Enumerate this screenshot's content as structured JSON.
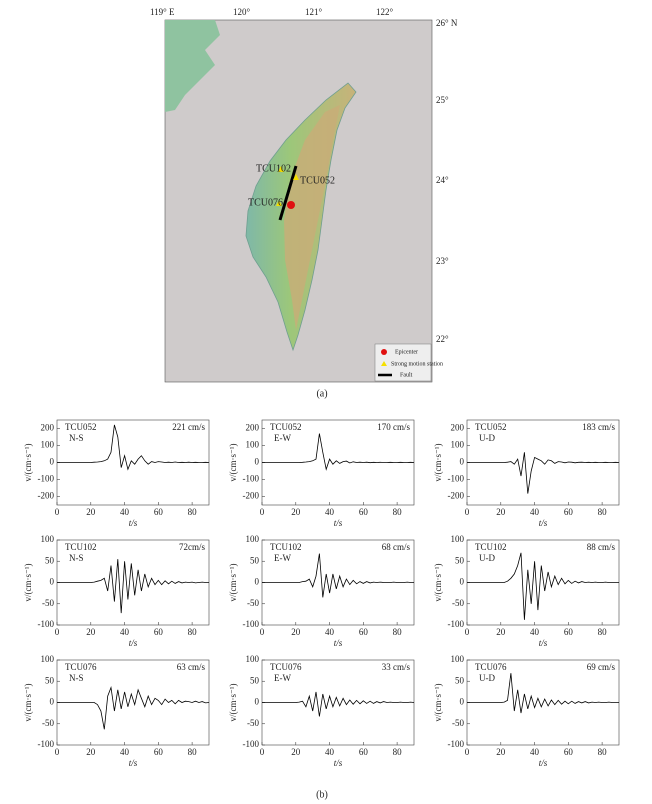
{
  "map": {
    "lon_labels": [
      "119° E",
      "120°",
      "121°",
      "122°"
    ],
    "lat_labels": [
      "26° N",
      "25°",
      "24°",
      "23°",
      "22°"
    ],
    "stations": [
      "TCU102",
      "TCU052",
      "TCU076"
    ],
    "legend": [
      "Epicenter",
      "Strong motion station",
      "Fault"
    ],
    "caption": "(a)"
  },
  "caption_b": "(b)",
  "chart_data": [
    {
      "type": "line",
      "title": "TCU052",
      "subtitle": "N-S",
      "annotation": "221 cm/s",
      "ylabel": "v/(cm·s⁻¹)",
      "xlabel": "t/s",
      "color": "#000000",
      "xlim": [
        0,
        90
      ],
      "xticks": [
        0,
        20,
        40,
        60,
        80
      ],
      "ylim": [
        -250,
        250
      ],
      "yticks": [
        -200,
        -100,
        0,
        100,
        200
      ],
      "x": [
        0,
        2,
        4,
        6,
        8,
        10,
        12,
        14,
        16,
        18,
        20,
        22,
        24,
        26,
        28,
        30,
        32,
        34,
        36,
        38,
        40,
        42,
        44,
        46,
        48,
        50,
        52,
        54,
        56,
        58,
        60,
        62,
        64,
        66,
        68,
        70,
        72,
        74,
        76,
        78,
        80,
        82,
        84,
        86,
        88,
        90
      ],
      "values": [
        0,
        0,
        0,
        0,
        0,
        0,
        0,
        0,
        0,
        0,
        0,
        2,
        3,
        5,
        10,
        20,
        60,
        221,
        150,
        -30,
        40,
        -40,
        10,
        -10,
        20,
        40,
        10,
        -10,
        5,
        0,
        5,
        3,
        0,
        2,
        0,
        3,
        0,
        1,
        0,
        2,
        0,
        1,
        0,
        0,
        1,
        0
      ]
    },
    {
      "type": "line",
      "title": "TCU052",
      "subtitle": "E-W",
      "annotation": "170 cm/s",
      "ylabel": "v/(cm·s⁻¹)",
      "xlabel": "t/s",
      "color": "#000000",
      "xlim": [
        0,
        90
      ],
      "xticks": [
        0,
        20,
        40,
        60,
        80
      ],
      "ylim": [
        -250,
        250
      ],
      "yticks": [
        -200,
        -100,
        0,
        100,
        200
      ],
      "x": [
        0,
        2,
        4,
        6,
        8,
        10,
        12,
        14,
        16,
        18,
        20,
        22,
        24,
        26,
        28,
        30,
        32,
        34,
        36,
        38,
        40,
        42,
        44,
        46,
        48,
        50,
        52,
        54,
        56,
        58,
        60,
        62,
        64,
        66,
        68,
        70,
        72,
        74,
        76,
        78,
        80,
        82,
        84,
        86,
        88,
        90
      ],
      "values": [
        0,
        0,
        0,
        0,
        0,
        0,
        0,
        0,
        0,
        0,
        0,
        0,
        1,
        3,
        5,
        10,
        20,
        170,
        60,
        -40,
        20,
        -10,
        10,
        -5,
        5,
        8,
        -3,
        4,
        0,
        2,
        0,
        2,
        -1,
        1,
        0,
        1,
        0,
        0,
        1,
        0,
        0,
        1,
        0,
        0,
        1,
        0
      ]
    },
    {
      "type": "line",
      "title": "TCU052",
      "subtitle": "U-D",
      "annotation": "183 cm/s",
      "ylabel": "v/(cm·s⁻¹)",
      "xlabel": "t/s",
      "color": "#000000",
      "xlim": [
        0,
        90
      ],
      "xticks": [
        0,
        20,
        40,
        60,
        80
      ],
      "ylim": [
        -250,
        250
      ],
      "yticks": [
        -200,
        -100,
        0,
        100,
        200
      ],
      "x": [
        0,
        2,
        4,
        6,
        8,
        10,
        12,
        14,
        16,
        18,
        20,
        22,
        24,
        26,
        28,
        30,
        32,
        34,
        36,
        38,
        40,
        42,
        44,
        46,
        48,
        50,
        52,
        54,
        56,
        58,
        60,
        62,
        64,
        66,
        68,
        70,
        72,
        74,
        76,
        78,
        80,
        82,
        84,
        86,
        88,
        90
      ],
      "values": [
        0,
        0,
        0,
        0,
        0,
        0,
        0,
        0,
        0,
        0,
        0,
        0,
        2,
        5,
        -10,
        20,
        -80,
        60,
        -183,
        -50,
        30,
        20,
        10,
        -10,
        15,
        10,
        -5,
        5,
        3,
        -2,
        3,
        2,
        -2,
        1,
        2,
        0,
        1,
        0,
        1,
        0,
        0,
        1,
        0,
        0,
        1,
        0
      ]
    },
    {
      "type": "line",
      "title": "TCU102",
      "subtitle": "N-S",
      "annotation": "72cm/s",
      "ylabel": "v/(cm·s⁻¹)",
      "xlabel": "t/s",
      "color": "#000000",
      "xlim": [
        0,
        90
      ],
      "xticks": [
        0,
        20,
        40,
        60,
        80
      ],
      "ylim": [
        -100,
        100
      ],
      "yticks": [
        -100,
        -50,
        0,
        50,
        100
      ],
      "x": [
        0,
        2,
        4,
        6,
        8,
        10,
        12,
        14,
        16,
        18,
        20,
        22,
        24,
        26,
        28,
        30,
        32,
        34,
        36,
        38,
        40,
        42,
        44,
        46,
        48,
        50,
        52,
        54,
        56,
        58,
        60,
        62,
        64,
        66,
        68,
        70,
        72,
        74,
        76,
        78,
        80,
        82,
        84,
        86,
        88,
        90
      ],
      "values": [
        0,
        0,
        0,
        0,
        0,
        0,
        0,
        0,
        0,
        0,
        0,
        1,
        3,
        5,
        10,
        -20,
        40,
        -45,
        55,
        -72,
        50,
        -40,
        45,
        -30,
        30,
        -20,
        20,
        -10,
        10,
        -5,
        5,
        -5,
        4,
        -3,
        3,
        -2,
        2,
        -1,
        1,
        0,
        1,
        -1,
        0,
        1,
        0,
        0
      ]
    },
    {
      "type": "line",
      "title": "TCU102",
      "subtitle": "E-W",
      "annotation": "68 cm/s",
      "ylabel": "v/(cm·s⁻¹)",
      "xlabel": "t/s",
      "color": "#000000",
      "xlim": [
        0,
        90
      ],
      "xticks": [
        0,
        20,
        40,
        60,
        80
      ],
      "ylim": [
        -100,
        100
      ],
      "yticks": [
        -100,
        -50,
        0,
        50,
        100
      ],
      "x": [
        0,
        2,
        4,
        6,
        8,
        10,
        12,
        14,
        16,
        18,
        20,
        22,
        24,
        26,
        28,
        30,
        32,
        34,
        36,
        38,
        40,
        42,
        44,
        46,
        48,
        50,
        52,
        54,
        56,
        58,
        60,
        62,
        64,
        66,
        68,
        70,
        72,
        74,
        76,
        78,
        80,
        82,
        84,
        86,
        88,
        90
      ],
      "values": [
        0,
        0,
        0,
        0,
        0,
        0,
        0,
        0,
        0,
        0,
        0,
        0,
        2,
        3,
        8,
        -10,
        15,
        68,
        -35,
        20,
        -25,
        20,
        -15,
        15,
        -10,
        8,
        -5,
        5,
        -3,
        2,
        -2,
        2,
        -1,
        1,
        0,
        1,
        0,
        0,
        0,
        1,
        0,
        0,
        0,
        1,
        0,
        0
      ]
    },
    {
      "type": "line",
      "title": "TCU102",
      "subtitle": "U-D",
      "annotation": "88 cm/s",
      "ylabel": "v/(cm·s⁻¹)",
      "xlabel": "t/s",
      "color": "#000000",
      "xlim": [
        0,
        90
      ],
      "xticks": [
        0,
        20,
        40,
        60,
        80
      ],
      "ylim": [
        -100,
        100
      ],
      "yticks": [
        -100,
        -50,
        0,
        50,
        100
      ],
      "x": [
        0,
        2,
        4,
        6,
        8,
        10,
        12,
        14,
        16,
        18,
        20,
        22,
        24,
        26,
        28,
        30,
        32,
        34,
        36,
        38,
        40,
        42,
        44,
        46,
        48,
        50,
        52,
        54,
        56,
        58,
        60,
        62,
        64,
        66,
        68,
        70,
        72,
        74,
        76,
        78,
        80,
        82,
        84,
        86,
        88,
        90
      ],
      "values": [
        0,
        0,
        0,
        0,
        0,
        0,
        0,
        0,
        0,
        0,
        0,
        0,
        3,
        10,
        20,
        40,
        70,
        -88,
        30,
        -50,
        50,
        -65,
        40,
        -20,
        25,
        -10,
        15,
        -5,
        10,
        -3,
        5,
        -2,
        3,
        -1,
        2,
        0,
        1,
        0,
        1,
        0,
        0,
        1,
        0,
        0,
        0,
        0
      ]
    },
    {
      "type": "line",
      "title": "TCU076",
      "subtitle": "N-S",
      "annotation": "63 cm/s",
      "ylabel": "v/(cm·s⁻¹)",
      "xlabel": "t/s",
      "color": "#000000",
      "xlim": [
        0,
        90
      ],
      "xticks": [
        0,
        20,
        40,
        60,
        80
      ],
      "ylim": [
        -100,
        100
      ],
      "yticks": [
        -100,
        -50,
        0,
        50,
        100
      ],
      "x": [
        0,
        2,
        4,
        6,
        8,
        10,
        12,
        14,
        16,
        18,
        20,
        22,
        24,
        26,
        28,
        30,
        32,
        34,
        36,
        38,
        40,
        42,
        44,
        46,
        48,
        50,
        52,
        54,
        56,
        58,
        60,
        62,
        64,
        66,
        68,
        70,
        72,
        74,
        76,
        78,
        80,
        82,
        84,
        86,
        88,
        90
      ],
      "values": [
        0,
        0,
        0,
        0,
        0,
        0,
        0,
        0,
        0,
        0,
        0,
        0,
        -5,
        -20,
        -63,
        15,
        35,
        -20,
        30,
        -15,
        25,
        -10,
        20,
        -5,
        30,
        10,
        -10,
        15,
        -5,
        10,
        5,
        -5,
        8,
        0,
        5,
        -3,
        5,
        0,
        3,
        2,
        0,
        3,
        0,
        2,
        -1,
        0
      ]
    },
    {
      "type": "line",
      "title": "TCU076",
      "subtitle": "E-W",
      "annotation": "33 cm/s",
      "ylabel": "v/(cm·s⁻¹)",
      "xlabel": "t/s",
      "color": "#000000",
      "xlim": [
        0,
        90
      ],
      "xticks": [
        0,
        20,
        40,
        60,
        80
      ],
      "ylim": [
        -100,
        100
      ],
      "yticks": [
        -100,
        -50,
        0,
        50,
        100
      ],
      "x": [
        0,
        2,
        4,
        6,
        8,
        10,
        12,
        14,
        16,
        18,
        20,
        22,
        24,
        26,
        28,
        30,
        32,
        34,
        36,
        38,
        40,
        42,
        44,
        46,
        48,
        50,
        52,
        54,
        56,
        58,
        60,
        62,
        64,
        66,
        68,
        70,
        72,
        74,
        76,
        78,
        80,
        82,
        84,
        86,
        88,
        90
      ],
      "values": [
        0,
        0,
        0,
        0,
        0,
        0,
        0,
        0,
        0,
        0,
        0,
        1,
        3,
        -10,
        15,
        -20,
        25,
        -33,
        20,
        -15,
        15,
        -10,
        12,
        -8,
        10,
        -5,
        6,
        -4,
        5,
        -3,
        4,
        -2,
        3,
        -2,
        2,
        -1,
        2,
        0,
        1,
        0,
        0,
        1,
        0,
        0,
        1,
        0
      ]
    },
    {
      "type": "line",
      "title": "TCU076",
      "subtitle": "U-D",
      "annotation": "69 cm/s",
      "ylabel": "v/(cm·s⁻¹)",
      "xlabel": "t/s",
      "color": "#000000",
      "xlim": [
        0,
        90
      ],
      "xticks": [
        0,
        20,
        40,
        60,
        80
      ],
      "ylim": [
        -100,
        100
      ],
      "yticks": [
        -100,
        -50,
        0,
        50,
        100
      ],
      "x": [
        0,
        2,
        4,
        6,
        8,
        10,
        12,
        14,
        16,
        18,
        20,
        22,
        24,
        26,
        28,
        30,
        32,
        34,
        36,
        38,
        40,
        42,
        44,
        46,
        48,
        50,
        52,
        54,
        56,
        58,
        60,
        62,
        64,
        66,
        68,
        70,
        72,
        74,
        76,
        78,
        80,
        82,
        84,
        86,
        88,
        90
      ],
      "values": [
        0,
        0,
        0,
        0,
        0,
        0,
        0,
        0,
        0,
        0,
        0,
        1,
        5,
        69,
        -20,
        30,
        -25,
        20,
        -15,
        15,
        -12,
        10,
        -10,
        8,
        -8,
        6,
        -5,
        5,
        -4,
        3,
        -3,
        3,
        -2,
        2,
        -1,
        2,
        -1,
        1,
        0,
        1,
        0,
        0,
        1,
        0,
        0,
        0
      ]
    }
  ]
}
